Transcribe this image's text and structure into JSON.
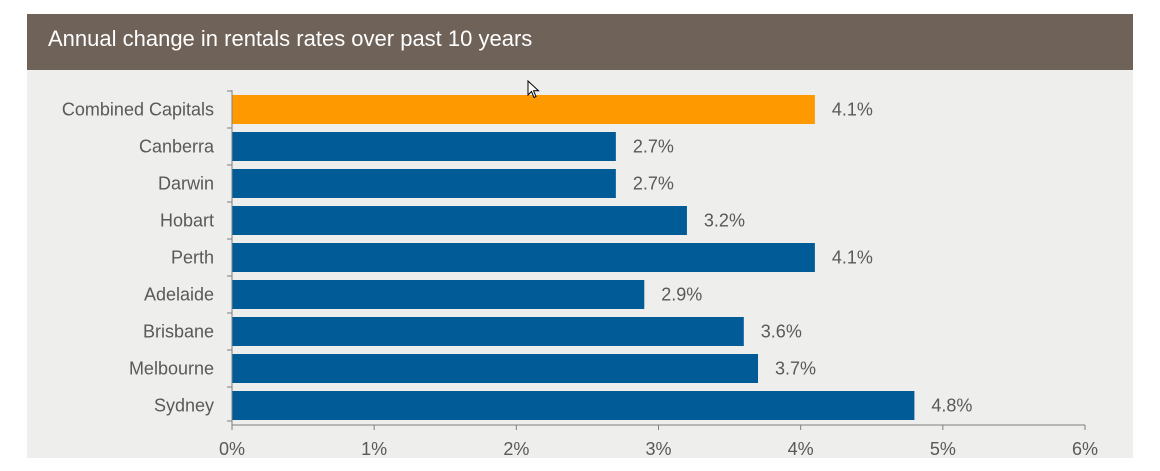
{
  "header": {
    "title": "Annual change in rentals rates over past 10 years"
  },
  "colors": {
    "header_bg": "#6f6259",
    "plot_bg": "#eeeeec",
    "highlight_bar": "#ff9900",
    "bar": "#005b96",
    "text": "#595959",
    "axis": "#7f7f7f"
  },
  "chart_data": {
    "type": "bar",
    "orientation": "horizontal",
    "title": "Annual change in rentals rates over past 10 years",
    "categories": [
      "Combined Capitals",
      "Canberra",
      "Darwin",
      "Hobart",
      "Perth",
      "Adelaide",
      "Brisbane",
      "Melbourne",
      "Sydney"
    ],
    "values": [
      4.1,
      2.7,
      2.7,
      3.2,
      4.1,
      2.9,
      3.6,
      3.7,
      4.8
    ],
    "data_labels": [
      "4.1%",
      "2.7%",
      "2.7%",
      "3.2%",
      "4.1%",
      "2.9%",
      "3.6%",
      "3.7%",
      "4.8%"
    ],
    "highlight_category": "Combined Capitals",
    "xlim": [
      0,
      6
    ],
    "x_ticks": [
      0,
      1,
      2,
      3,
      4,
      5,
      6
    ],
    "x_tick_labels": [
      "0%",
      "1%",
      "2%",
      "3%",
      "4%",
      "5%",
      "6%"
    ],
    "grid": false,
    "legend": false
  }
}
